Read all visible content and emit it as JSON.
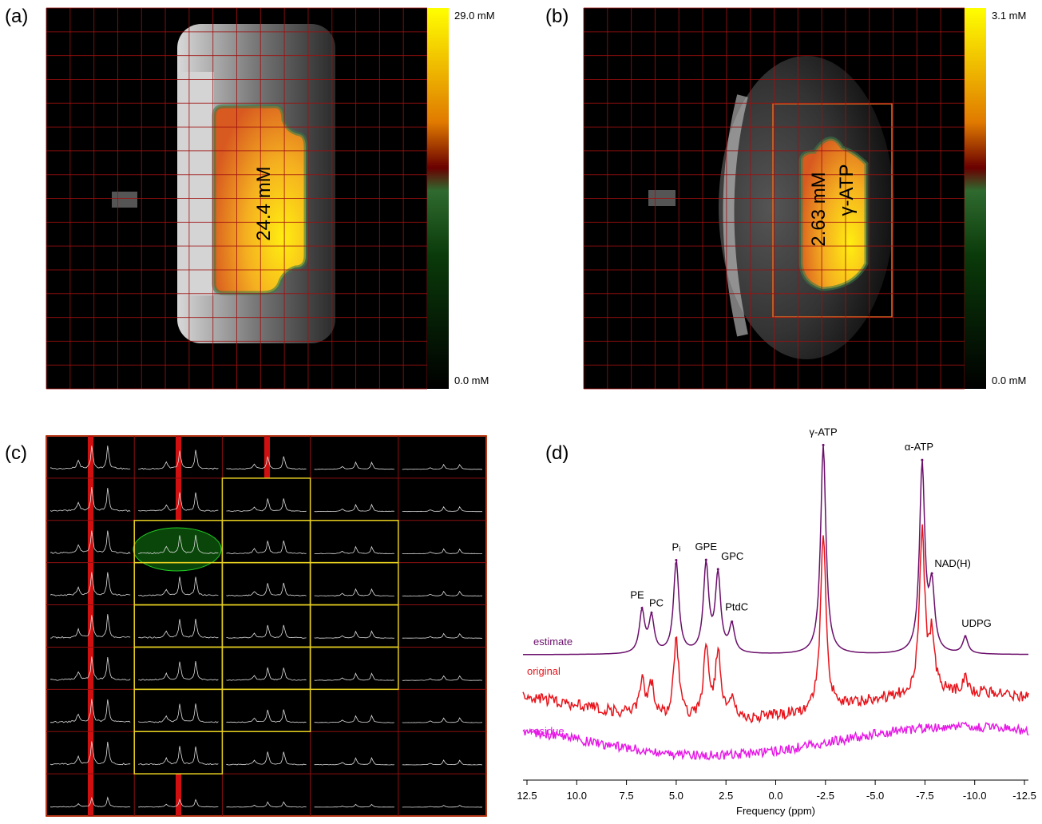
{
  "panels": {
    "a": {
      "label": "(a)",
      "colorbar_max": "29.0 mM",
      "colorbar_min": "0.0 mM",
      "overlay": [
        "24.4 mM"
      ]
    },
    "b": {
      "label": "(b)",
      "colorbar_max": "3.1 mM",
      "colorbar_min": "0.0 mM",
      "overlay": [
        "2.63 mM",
        "γ-ATP"
      ]
    },
    "c": {
      "label": "(c)"
    },
    "d": {
      "label": "(d)"
    }
  },
  "chart_data": {
    "type": "spectrum",
    "xlabel": "Frequency (ppm)",
    "xlim": [
      12.7,
      -12.7
    ],
    "xticks": [
      12.5,
      {
        "value": 10,
        "label": "10.0"
      },
      7.5,
      {
        "value": 5,
        "label": "5.0"
      },
      2.5,
      {
        "value": 0,
        "label": "0.0"
      },
      -2.5,
      {
        "value": -5,
        "label": "-5.0"
      },
      -7.5,
      {
        "value": -10,
        "label": "-10.0"
      },
      -12.5
    ],
    "peaks": {
      "labels": [
        "PE",
        "PC",
        "Pᵢ",
        "GPE",
        "GPC",
        "PtdC",
        "γ-ATP",
        "α-ATP",
        "NAD(H)",
        "UDPG"
      ],
      "ppm": [
        6.72,
        6.24,
        5.0,
        3.5,
        2.9,
        2.2,
        -2.39,
        -7.36,
        -7.85,
        -9.53
      ],
      "heights": [
        0.2,
        0.17,
        0.44,
        0.42,
        0.37,
        0.13,
        1.0,
        0.9,
        0.3,
        0.08
      ]
    },
    "series": [
      {
        "name": "estimate",
        "color": "#6b0f6b"
      },
      {
        "name": "original",
        "color": "#e8141b"
      },
      {
        "name": "residue",
        "color": "#e619e6"
      }
    ]
  }
}
